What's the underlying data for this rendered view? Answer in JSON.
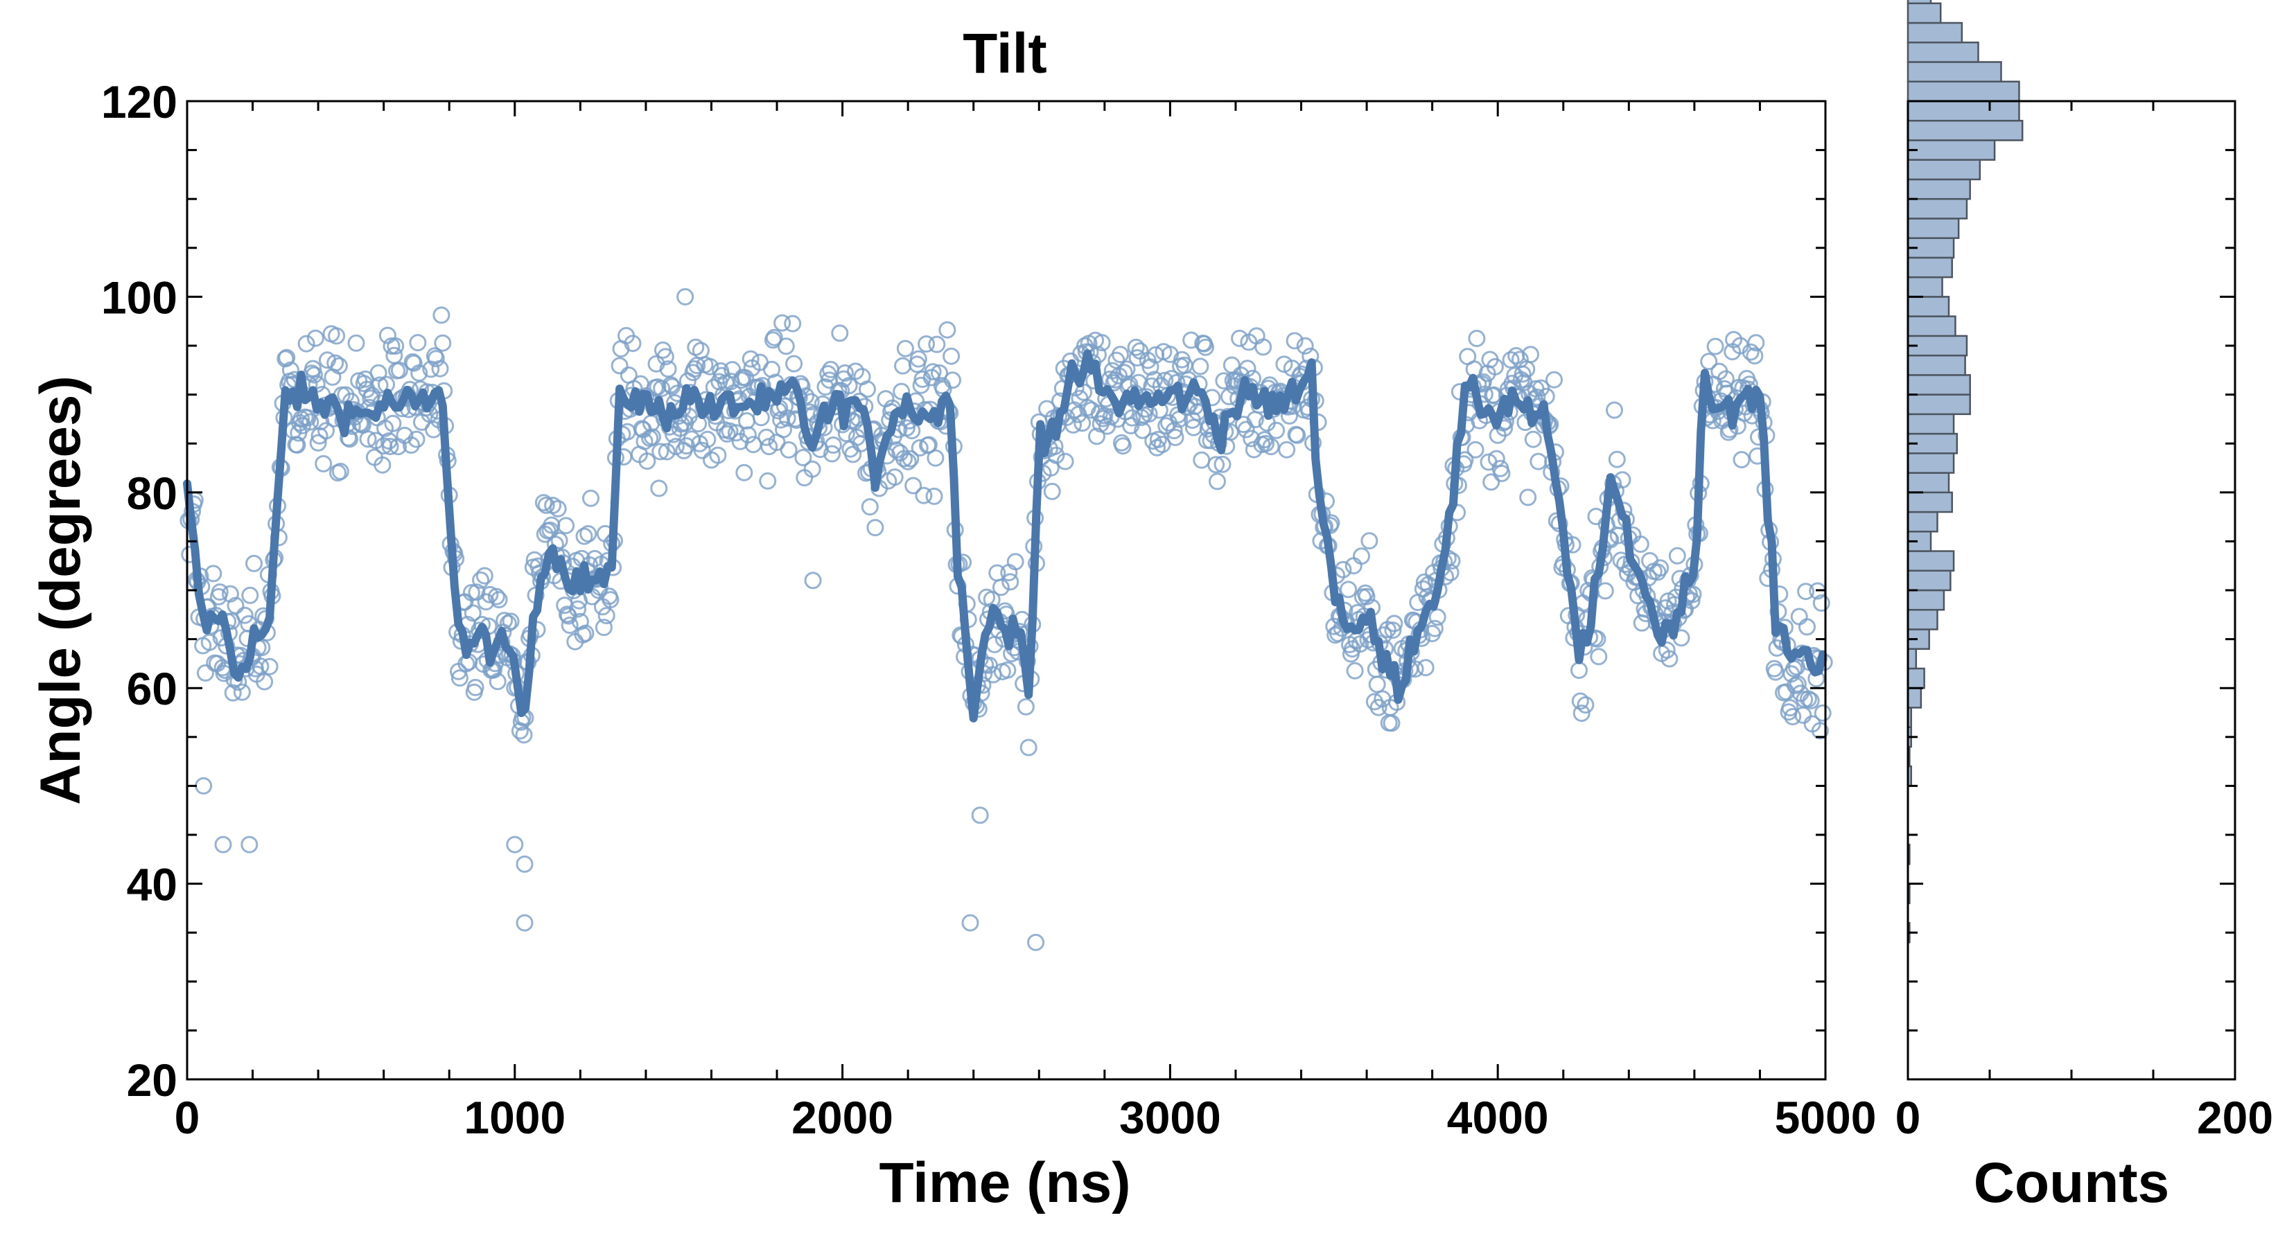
{
  "chart_data": [
    {
      "type": "scatter",
      "title": "Tilt",
      "xlabel": "Time (ns)",
      "ylabel": "Angle (degrees)",
      "xlim": [
        0,
        5000
      ],
      "ylim": [
        20,
        120
      ],
      "x_ticks": [
        "0",
        "1000",
        "2000",
        "3000",
        "4000",
        "5000"
      ],
      "y_ticks": [
        "20",
        "40",
        "60",
        "80",
        "100",
        "120"
      ],
      "colors": {
        "marker": "#7b9fc7",
        "line": "#4a78ad"
      },
      "series": [
        {
          "name": "Running average",
          "style": "line",
          "x": [
            0,
            50,
            100,
            150,
            200,
            250,
            300,
            350,
            400,
            450,
            500,
            550,
            600,
            650,
            700,
            750,
            780,
            800,
            830,
            850,
            900,
            950,
            1000,
            1030,
            1050,
            1100,
            1150,
            1200,
            1250,
            1300,
            1320,
            1350,
            1400,
            1450,
            1500,
            1550,
            1600,
            1650,
            1700,
            1750,
            1800,
            1850,
            1900,
            1950,
            2000,
            2050,
            2100,
            2150,
            2200,
            2250,
            2300,
            2330,
            2350,
            2400,
            2450,
            2500,
            2550,
            2570,
            2600,
            2650,
            2700,
            2750,
            2800,
            2850,
            2900,
            2950,
            3000,
            3050,
            3100,
            3150,
            3200,
            3250,
            3300,
            3350,
            3400,
            3430,
            3450,
            3500,
            3550,
            3600,
            3650,
            3700,
            3750,
            3800,
            3850,
            3900,
            3950,
            4000,
            4050,
            4100,
            4150,
            4200,
            4250,
            4300,
            4350,
            4400,
            4450,
            4500,
            4550,
            4600,
            4630,
            4650,
            4700,
            4750,
            4800,
            4850,
            4900,
            4950,
            5000
          ],
          "values": [
            80,
            66,
            68,
            61,
            65,
            66,
            90,
            90,
            89,
            89,
            88,
            88,
            89,
            89,
            89,
            89,
            90,
            78,
            66,
            64,
            65,
            64,
            63,
            55,
            66,
            75,
            72,
            71,
            71,
            72,
            90,
            90,
            89,
            88,
            89,
            90,
            88,
            89,
            89,
            89,
            89,
            91,
            85,
            88,
            89,
            89,
            82,
            88,
            89,
            88,
            88,
            91,
            74,
            58,
            68,
            66,
            65,
            58,
            86,
            87,
            91,
            93,
            90,
            89,
            90,
            89,
            90,
            90,
            90,
            86,
            89,
            90,
            89,
            89,
            91,
            93,
            82,
            70,
            66,
            67,
            63,
            60,
            66,
            69,
            76,
            90,
            89,
            88,
            90,
            88,
            87,
            75,
            63,
            70,
            81,
            75,
            70,
            65,
            68,
            72,
            93,
            89,
            89,
            89,
            90,
            66,
            64,
            63,
            63
          ],
          "note": "dense 2 ns samples rendered as ~4 ns running average; values estimated from figure"
        },
        {
          "name": "Raw samples",
          "style": "markers",
          "note": "open circles scattered around the running average (spread ~±6°, occasional outliers down to ~34°)",
          "outliers": [
            [
              50,
              50
            ],
            [
              110,
              44
            ],
            [
              190,
              44
            ],
            [
              1000,
              44
            ],
            [
              1030,
              42
            ],
            [
              1030,
              36
            ],
            [
              2390,
              36
            ],
            [
              2420,
              47
            ],
            [
              2590,
              34
            ],
            [
              1520,
              100
            ],
            [
              1910,
              71
            ]
          ]
        }
      ]
    },
    {
      "type": "bar",
      "orientation": "horizontal",
      "xlabel": "Counts",
      "x_ticks": [
        "0",
        "200"
      ],
      "xlim": [
        0,
        200
      ],
      "ylim": [
        20,
        120
      ],
      "colors": {
        "fill": "#a3b9d4",
        "edge": "#4d5560"
      },
      "bin_width": 2,
      "bin_edges_start": 34,
      "counts": [
        1,
        0,
        1,
        0,
        1,
        0,
        0,
        0,
        2,
        1,
        2,
        2,
        8,
        10,
        5,
        13,
        18,
        22,
        26,
        28,
        14,
        18,
        27,
        25,
        28,
        30,
        28,
        38,
        38,
        35,
        36,
        29,
        25,
        21,
        27,
        28,
        31,
        36,
        38,
        44,
        53,
        70,
        68,
        68,
        57,
        43,
        33,
        20,
        14,
        8,
        7,
        4,
        1
      ]
    }
  ]
}
